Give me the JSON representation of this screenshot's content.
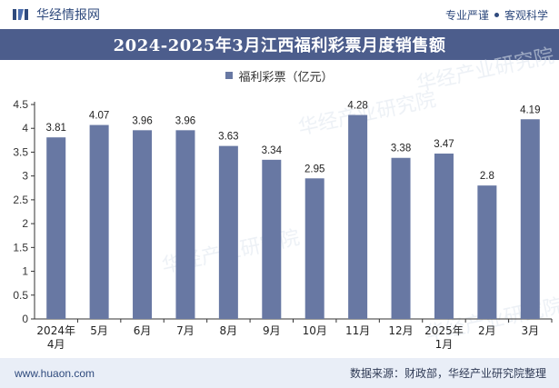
{
  "header": {
    "brand": "华经情报网",
    "tag1": "专业严谨",
    "tag2": "客观科学"
  },
  "colors": {
    "bar": "#6878a3",
    "title_bg": "#4c5d8c",
    "brand": "#2f4a7d",
    "footer_bg": "#e9eef7"
  },
  "footer": {
    "url": "www.huaon.com",
    "source": "数据来源：财政部，华经产业研究院整理"
  },
  "watermark": "华经产业研究院",
  "chart_data": {
    "type": "bar",
    "title": "2024-2025年3月江西福利彩票月度销售额",
    "categories": [
      "2024年4月",
      "5月",
      "6月",
      "7月",
      "8月",
      "9月",
      "10月",
      "11月",
      "12月",
      "2025年1月",
      "2月",
      "3月"
    ],
    "series": [
      {
        "name": "福利彩票（亿元）",
        "values": [
          3.81,
          4.07,
          3.96,
          3.96,
          3.63,
          3.34,
          2.95,
          4.28,
          3.38,
          3.47,
          2.8,
          4.19
        ]
      }
    ],
    "value_labels": [
      "3.81",
      "4.07",
      "3.96",
      "3.96",
      "3.63",
      "3.34",
      "2.95",
      "4.28",
      "3.38",
      "3.47",
      "2.8",
      "4.19"
    ],
    "ylim": [
      0,
      4.5
    ],
    "yticks": [
      "0",
      "0.5",
      "1",
      "1.5",
      "2",
      "2.5",
      "3",
      "3.5",
      "4",
      "4.5"
    ],
    "xlabel": "",
    "ylabel": "",
    "grid": false,
    "legend_position": "top-center"
  }
}
